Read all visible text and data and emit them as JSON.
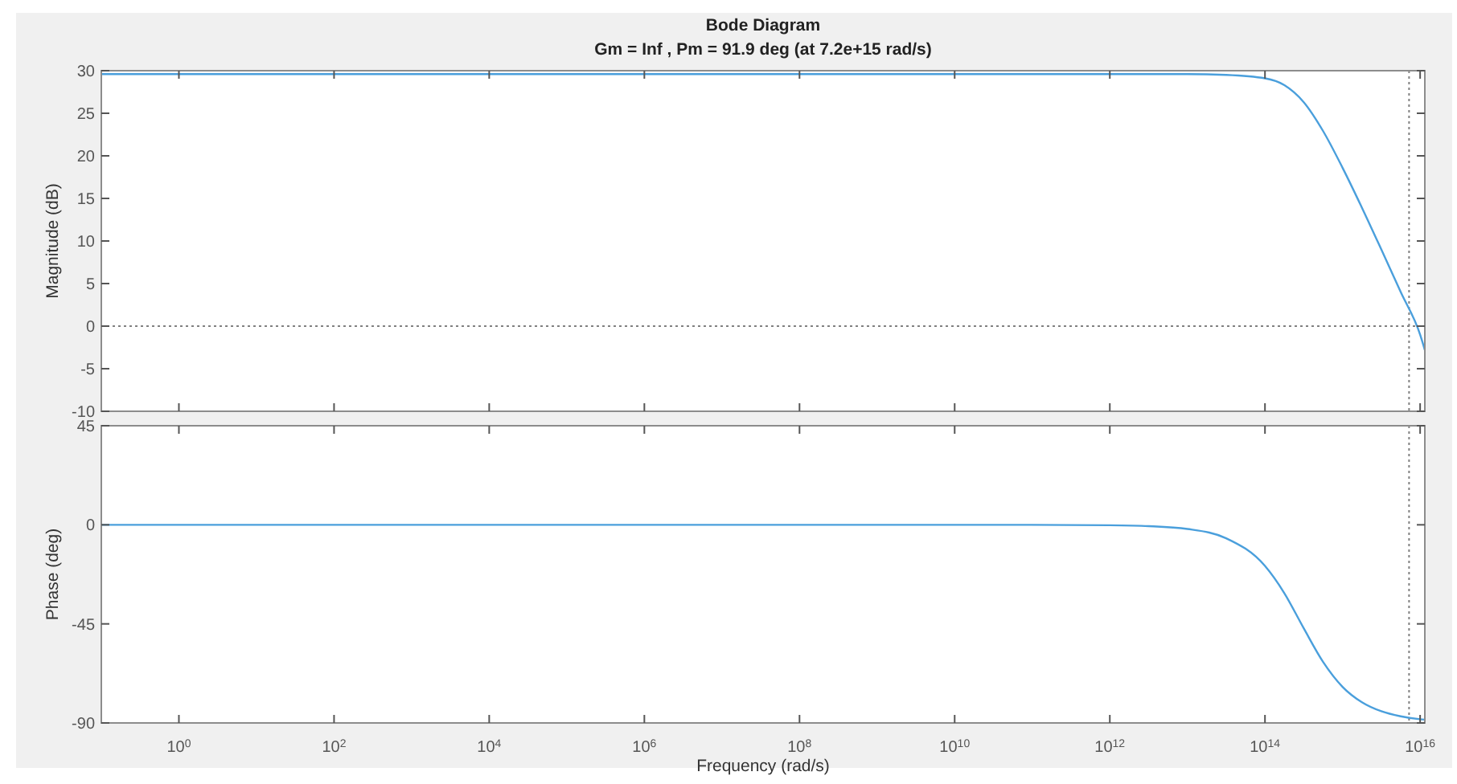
{
  "chart_data": [
    {
      "type": "line",
      "title": "Bode Diagram",
      "subtitle": "Gm = Inf ,  Pm = 91.9 deg (at 7.2e+15 rad/s)",
      "ylabel": "Magnitude (dB)",
      "log": "x",
      "x": [
        0.1,
        1,
        10,
        100,
        10000.0,
        1000000.0,
        100000000.0,
        10000000000.0,
        1000000000000.0,
        10000000000000.0,
        31600000000000.0,
        100000000000000.0,
        178000000000000.0,
        316000000000000.0,
        562000000000000.0,
        1000000000000000.0,
        1780000000000000.0,
        3160000000000000.0,
        5620000000000000.0,
        1e+16,
        1.15e+16
      ],
      "series": [
        {
          "color": "#4a9fdc",
          "values": [
            29.6,
            29.6,
            29.6,
            29.6,
            29.6,
            29.6,
            29.6,
            29.6,
            29.6,
            29.6,
            29.5,
            29.1,
            28.3,
            26.3,
            22.9,
            18.6,
            13.9,
            9.0,
            4.0,
            -1.0,
            -2.8
          ]
        }
      ],
      "xlim": [
        0.1,
        1.15e+16
      ],
      "ylim": [
        -10,
        30
      ],
      "yticks": [
        -10,
        -5,
        0,
        5,
        10,
        15,
        20,
        25,
        30
      ],
      "xticks": [
        {
          "value": 1,
          "label": null
        },
        {
          "value": 100,
          "label": null
        },
        {
          "value": 10000.0,
          "label": null
        },
        {
          "value": 1000000.0,
          "label": null
        },
        {
          "value": 100000000.0,
          "label": null
        },
        {
          "value": 10000000000.0,
          "label": null
        },
        {
          "value": 1000000000000.0,
          "label": null
        },
        {
          "value": 100000000000000.0,
          "label": null
        },
        {
          "value": 1e+16,
          "label": null
        }
      ],
      "tick_labels": "y",
      "grid": false,
      "ref_lines": [
        {
          "axis": "y",
          "value": 0,
          "color": "#808080",
          "line_style": "dotted"
        },
        {
          "axis": "x",
          "value": 7200000000000000.0,
          "color": "#808080",
          "line_style": "dotted"
        }
      ]
    },
    {
      "type": "line",
      "xlabel": "Frequency  (rad/s)",
      "ylabel": "Phase (deg)",
      "log": "x",
      "x": [
        0.1,
        1,
        10,
        100,
        10000.0,
        1000000.0,
        100000000.0,
        10000000000.0,
        100000000000.0,
        1000000000000.0,
        3160000000000.0,
        10000000000000.0,
        31600000000000.0,
        100000000000000.0,
        178000000000000.0,
        316000000000000.0,
        562000000000000.0,
        1000000000000000.0,
        1780000000000000.0,
        3160000000000000.0,
        5620000000000000.0,
        1e+16,
        1.15e+16
      ],
      "series": [
        {
          "color": "#4a9fdc",
          "values": [
            0,
            0,
            0,
            0,
            0,
            0,
            0,
            0,
            0,
            -0.2,
            -0.6,
            -1.9,
            -6.1,
            -18.7,
            -31.1,
            -47.0,
            -62.3,
            -73.6,
            -80.6,
            -84.7,
            -87.0,
            -88.3,
            -88.5
          ]
        }
      ],
      "xlim": [
        0.1,
        1.15e+16
      ],
      "ylim": [
        -90,
        45
      ],
      "yticks": [
        -90,
        -45,
        0,
        45
      ],
      "xticks": [
        {
          "value": 1,
          "label": "10$^{0}$"
        },
        {
          "value": 100,
          "label": "10$^{2}$"
        },
        {
          "value": 10000.0,
          "label": "10$^{4}$"
        },
        {
          "value": 1000000.0,
          "label": "10$^{6}$"
        },
        {
          "value": 100000000.0,
          "label": "10$^{8}$"
        },
        {
          "value": 10000000000.0,
          "label": "10$^{10}$"
        },
        {
          "value": 1000000000000.0,
          "label": "10$^{12}$"
        },
        {
          "value": 100000000000000.0,
          "label": "10$^{14}$"
        },
        {
          "value": 1e+16,
          "label": "10$^{16}$"
        }
      ],
      "grid": false,
      "ref_lines": [
        {
          "axis": "x",
          "value": 7200000000000000.0,
          "color": "#808080",
          "line_style": "dotted"
        }
      ]
    }
  ]
}
